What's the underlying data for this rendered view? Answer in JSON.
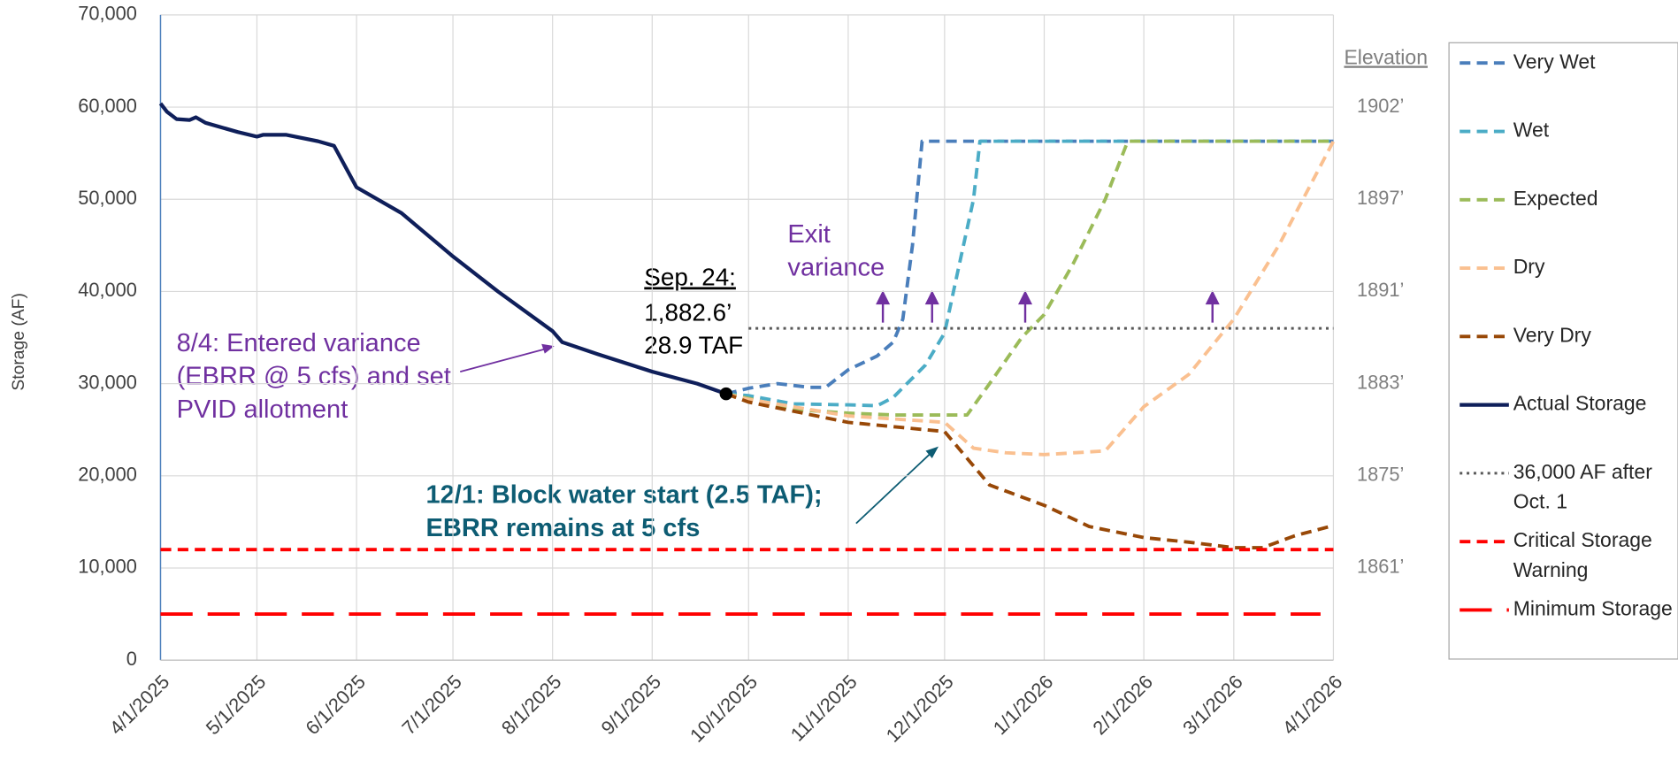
{
  "chart_data": {
    "type": "line",
    "ylabel": "Storage (AF)",
    "xlim": [
      "2025-04-01",
      "2026-04-01"
    ],
    "xticks": [
      {
        "value": "2025-04-01",
        "label": "4/1/2025"
      },
      {
        "value": "2025-05-01",
        "label": "5/1/2025"
      },
      {
        "value": "2025-06-01",
        "label": "6/1/2025"
      },
      {
        "value": "2025-07-01",
        "label": "7/1/2025"
      },
      {
        "value": "2025-08-01",
        "label": "8/1/2025"
      },
      {
        "value": "2025-09-01",
        "label": "9/1/2025"
      },
      {
        "value": "2025-10-01",
        "label": "10/1/2025"
      },
      {
        "value": "2025-11-01",
        "label": "11/1/2025"
      },
      {
        "value": "2025-12-01",
        "label": "12/1/2025"
      },
      {
        "value": "2026-01-01",
        "label": "1/1/2026"
      },
      {
        "value": "2026-02-01",
        "label": "2/1/2026"
      },
      {
        "value": "2026-03-01",
        "label": "3/1/2026"
      },
      {
        "value": "2026-04-01",
        "label": "4/1/2026"
      }
    ],
    "ylim": [
      0,
      70000
    ],
    "yticks": [
      0,
      {
        "value": 10000,
        "label": "10,000"
      },
      {
        "value": 20000,
        "label": "20,000"
      },
      {
        "value": 30000,
        "label": "30,000"
      },
      {
        "value": 40000,
        "label": "40,000"
      },
      {
        "value": 50000,
        "label": "50,000"
      },
      {
        "value": 60000,
        "label": "60,000"
      },
      {
        "value": 70000,
        "label": "70,000"
      }
    ],
    "grid": true,
    "elevation_title": "Elevation",
    "elevation_ticks": [
      {
        "value": 60000,
        "label": "1902’"
      },
      {
        "value": 50000,
        "label": "1897’"
      },
      {
        "value": 40000,
        "label": "1891’"
      },
      {
        "value": 30000,
        "label": "1883’"
      },
      {
        "value": 20000,
        "label": "1875’"
      },
      {
        "value": 10000,
        "label": "1861’"
      }
    ],
    "series": [
      {
        "name": "Very Wet",
        "color": "#4a7ebb",
        "style": "dashed",
        "x": [
          "2025-09-24",
          "2025-10-01",
          "2025-10-10",
          "2025-10-20",
          "2025-10-25",
          "2025-11-01",
          "2025-11-10",
          "2025-11-15",
          "2025-11-18",
          "2025-11-21",
          "2025-11-24",
          "2026-04-01"
        ],
        "values": [
          28900,
          29500,
          30000,
          29600,
          29600,
          31500,
          33000,
          34500,
          37000,
          45000,
          56300,
          56300
        ]
      },
      {
        "name": "Wet",
        "color": "#4bacc6",
        "style": "dashed",
        "x": [
          "2025-09-24",
          "2025-10-01",
          "2025-10-15",
          "2025-11-01",
          "2025-11-10",
          "2025-11-15",
          "2025-11-25",
          "2025-12-01",
          "2025-12-05",
          "2025-12-10",
          "2025-12-12",
          "2026-04-01"
        ],
        "values": [
          28900,
          28700,
          27800,
          27700,
          27600,
          28500,
          32000,
          35500,
          42000,
          50000,
          56300,
          56300
        ]
      },
      {
        "name": "Expected",
        "color": "#9bbb59",
        "style": "dashed",
        "x": [
          "2025-09-24",
          "2025-10-01",
          "2025-10-15",
          "2025-11-01",
          "2025-11-15",
          "2025-12-01",
          "2025-12-08",
          "2025-12-15",
          "2025-12-25",
          "2026-01-01",
          "2026-01-10",
          "2026-01-20",
          "2026-01-27",
          "2026-04-01"
        ],
        "values": [
          28900,
          28400,
          27200,
          26800,
          26600,
          26600,
          26600,
          30000,
          35000,
          37500,
          43000,
          50000,
          56300,
          56300
        ]
      },
      {
        "name": "Dry",
        "color": "#fac090",
        "style": "dashed",
        "x": [
          "2025-09-24",
          "2025-10-01",
          "2025-11-01",
          "2025-12-01",
          "2025-12-10",
          "2025-12-20",
          "2026-01-01",
          "2026-01-20",
          "2026-02-01",
          "2026-02-15",
          "2026-03-01",
          "2026-03-15",
          "2026-04-01"
        ],
        "values": [
          28900,
          28300,
          26500,
          25800,
          23000,
          22500,
          22300,
          22700,
          27500,
          31000,
          37000,
          45000,
          56300
        ]
      },
      {
        "name": "Very Dry",
        "color": "#984807",
        "style": "dashed",
        "x": [
          "2025-09-24",
          "2025-10-01",
          "2025-11-01",
          "2025-12-01",
          "2025-12-15",
          "2026-01-01",
          "2026-01-15",
          "2026-02-01",
          "2026-02-15",
          "2026-03-01",
          "2026-03-10",
          "2026-03-20",
          "2026-04-01"
        ],
        "values": [
          28900,
          28000,
          25800,
          24800,
          19000,
          16800,
          14500,
          13300,
          12800,
          12200,
          12200,
          13500,
          14600
        ]
      },
      {
        "name": "Actual Storage",
        "color": "#0f1f5a",
        "style": "solid",
        "x": [
          "2025-04-01",
          "2025-04-03",
          "2025-04-06",
          "2025-04-10",
          "2025-04-12",
          "2025-04-15",
          "2025-04-25",
          "2025-05-01",
          "2025-05-03",
          "2025-05-10",
          "2025-05-20",
          "2025-05-25",
          "2025-06-01",
          "2025-06-15",
          "2025-07-01",
          "2025-07-15",
          "2025-08-01",
          "2025-08-04",
          "2025-08-15",
          "2025-09-01",
          "2025-09-15",
          "2025-09-24"
        ],
        "values": [
          60400,
          59500,
          58700,
          58600,
          58900,
          58300,
          57300,
          56800,
          57000,
          57000,
          56300,
          55800,
          51300,
          48500,
          43800,
          40000,
          35700,
          34500,
          33200,
          31300,
          30000,
          28900
        ]
      },
      {
        "name": "36,000 AF after Oct. 1",
        "color": "#595959",
        "style": "dotted",
        "x": [
          "2025-10-01",
          "2026-04-01"
        ],
        "values": [
          36000,
          36000
        ]
      },
      {
        "name": "Critical Storage Warning",
        "color": "#ff0000",
        "style": "dashed",
        "x": [
          "2025-04-01",
          "2026-04-01"
        ],
        "values": [
          12000,
          12000
        ]
      },
      {
        "name": "Minimum Storage",
        "color": "#ff0000",
        "style": "long-dash",
        "x": [
          "2025-04-01",
          "2026-03-28"
        ],
        "values": [
          5000,
          5000
        ]
      }
    ],
    "annotations": {
      "variance": "8/4: Entered variance (EBRR @ 5 cfs) and set PVID allotment",
      "exit": "Exit variance",
      "block": "12/1: Block water start (2.5 TAF); EBRR remains at 5 cfs",
      "sep_date": "Sep. 24:",
      "sep_elevation": "1,882.6’",
      "sep_storage": "28.9 TAF"
    }
  }
}
